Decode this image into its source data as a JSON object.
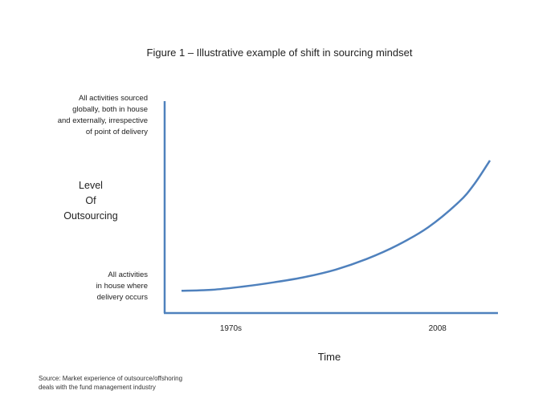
{
  "chart_data": {
    "type": "line",
    "title": "Figure 1 – Illustrative example  of shift in sourcing mindset",
    "ylabel": "Level\nOf\nOutsourcing",
    "xlabel": "Time",
    "y_top_label": "All activities sourced\nglobally, both in house\nand externally, irrespective\nof point of delivery",
    "y_bottom_label": "All activities\nin house where\ndelivery occurs",
    "x_ticks": [
      "1970s",
      "2008"
    ],
    "grid": false,
    "legend": "none",
    "series": [
      {
        "color": "#4f81bd",
        "x": [
          0,
          0.1,
          0.2,
          0.3,
          0.4,
          0.5,
          0.6,
          0.7,
          0.8,
          0.9,
          0.95,
          1.0
        ],
        "y": [
          0.105,
          0.11,
          0.125,
          0.145,
          0.17,
          0.205,
          0.255,
          0.32,
          0.405,
          0.525,
          0.61,
          0.72
        ]
      }
    ]
  },
  "source": "Source: Market experience of outsource/offshoring\ndeals with the fund management industry",
  "colors": {
    "axis": "#4f81bd",
    "line": "#4f81bd"
  }
}
